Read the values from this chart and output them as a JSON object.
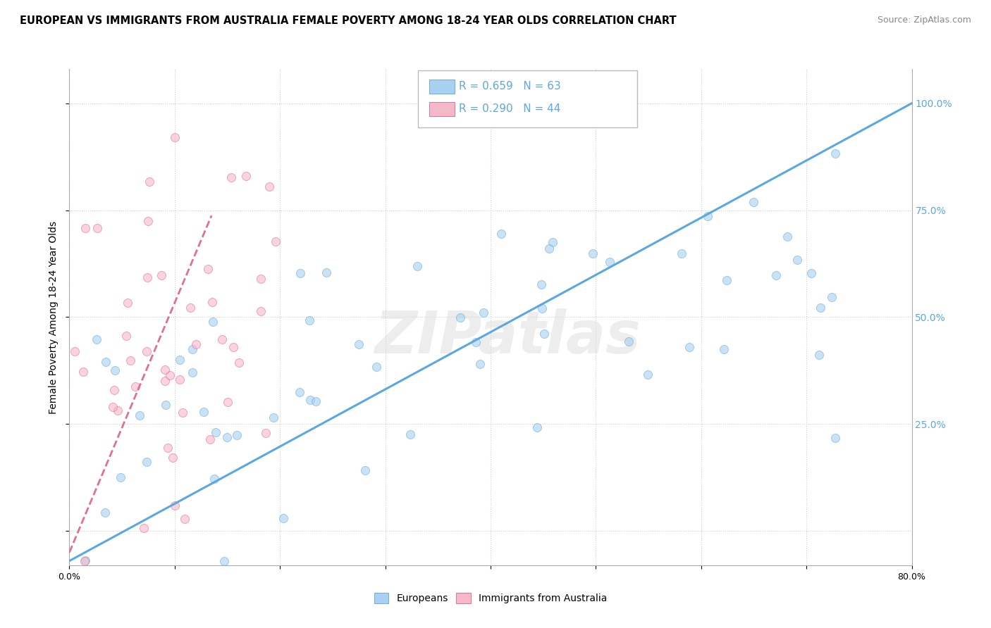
{
  "title": "EUROPEAN VS IMMIGRANTS FROM AUSTRALIA FEMALE POVERTY AMONG 18-24 YEAR OLDS CORRELATION CHART",
  "source": "Source: ZipAtlas.com",
  "ylabel": "Female Poverty Among 18-24 Year Olds",
  "xlim": [
    0.0,
    0.8
  ],
  "ylim": [
    -0.08,
    1.08
  ],
  "xticks": [
    0.0,
    0.1,
    0.2,
    0.3,
    0.4,
    0.5,
    0.6,
    0.7,
    0.8
  ],
  "xticklabels": [
    "0.0%",
    "",
    "",
    "",
    "",
    "",
    "",
    "",
    "80.0%"
  ],
  "ytick_positions": [
    0.0,
    0.25,
    0.5,
    0.75,
    1.0
  ],
  "ytick_labels": [
    "",
    "25.0%",
    "50.0%",
    "75.0%",
    "100.0%"
  ],
  "blue_color": "#A8D0F0",
  "pink_color": "#F5B8C8",
  "blue_edge_color": "#6AAEE0",
  "pink_edge_color": "#E87090",
  "blue_line_color": "#5BA8E0",
  "pink_line_color": "#E07090",
  "blue_R": 0.659,
  "pink_R": 0.29,
  "blue_N": 63,
  "pink_N": 44,
  "blue_seed": 42,
  "pink_seed": 7,
  "title_fontsize": 10.5,
  "label_fontsize": 10,
  "tick_fontsize": 9,
  "marker_size": 75,
  "blue_alpha": 0.6,
  "pink_alpha": 0.6,
  "watermark": "ZIPatlas",
  "legend_blue_text": "R = 0.659   N = 63",
  "legend_pink_text": "R = 0.290   N = 44",
  "bottom_legend_labels": [
    "Europeans",
    "Immigrants from Australia"
  ]
}
